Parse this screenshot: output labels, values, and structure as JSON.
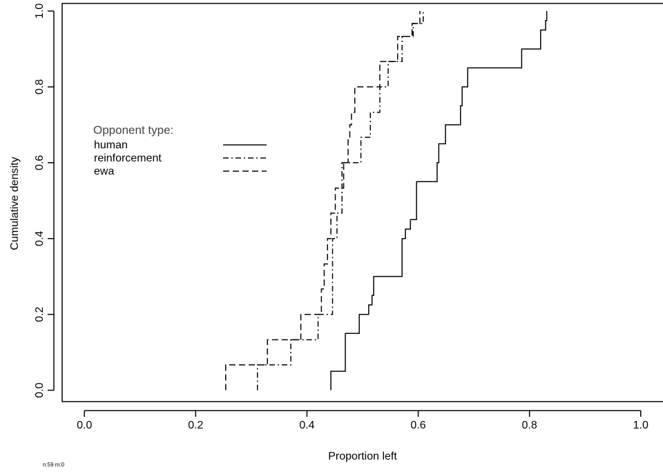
{
  "chart_data": {
    "type": "line",
    "title": "",
    "xlabel": "Proportion left",
    "ylabel": "Cumulative density",
    "xlim": [
      -0.04,
      1.04
    ],
    "ylim": [
      -0.03,
      1.02
    ],
    "x_ticks": [
      "0.0",
      "0.2",
      "0.4",
      "0.6",
      "0.8",
      "1.0"
    ],
    "y_ticks": [
      "0.0",
      "0.2",
      "0.4",
      "0.6",
      "0.8",
      "1.0"
    ],
    "grid": false,
    "step": true,
    "legend": {
      "title": "Opponent type:",
      "placement": "left",
      "entries": [
        "human",
        "reinforcement",
        "ewa"
      ]
    },
    "series": [
      {
        "name": "human",
        "line_style": "solid",
        "x": [
          0.443,
          0.469,
          0.494,
          0.511,
          0.517,
          0.52,
          0.571,
          0.577,
          0.586,
          0.597,
          0.634,
          0.637,
          0.649,
          0.676,
          0.679,
          0.689,
          0.786,
          0.82,
          0.829,
          0.831
        ],
        "y": [
          0.05,
          0.15,
          0.2,
          0.225,
          0.25,
          0.3,
          0.4,
          0.425,
          0.45,
          0.55,
          0.6,
          0.65,
          0.7,
          0.75,
          0.8,
          0.85,
          0.9,
          0.95,
          0.975,
          1.0
        ]
      },
      {
        "name": "reinforcement",
        "line_style": "dashdot",
        "x": [
          0.311,
          0.371,
          0.42,
          0.446,
          0.454,
          0.463,
          0.497,
          0.514,
          0.531,
          0.546,
          0.571,
          0.591,
          0.609
        ],
        "y": [
          0.067,
          0.133,
          0.2,
          0.4,
          0.467,
          0.6,
          0.667,
          0.733,
          0.8,
          0.867,
          0.933,
          0.967,
          1.0
        ]
      },
      {
        "name": "ewa",
        "line_style": "dashed",
        "x": [
          0.254,
          0.329,
          0.389,
          0.426,
          0.431,
          0.437,
          0.443,
          0.451,
          0.466,
          0.474,
          0.477,
          0.48,
          0.486,
          0.5,
          0.531,
          0.563,
          0.589,
          0.603
        ],
        "y": [
          0.067,
          0.133,
          0.2,
          0.267,
          0.333,
          0.4,
          0.467,
          0.533,
          0.6,
          0.667,
          0.7,
          0.733,
          0.8,
          0.8,
          0.867,
          0.933,
          0.967,
          1.0
        ]
      }
    ],
    "footnote": "n:59 m:0"
  }
}
